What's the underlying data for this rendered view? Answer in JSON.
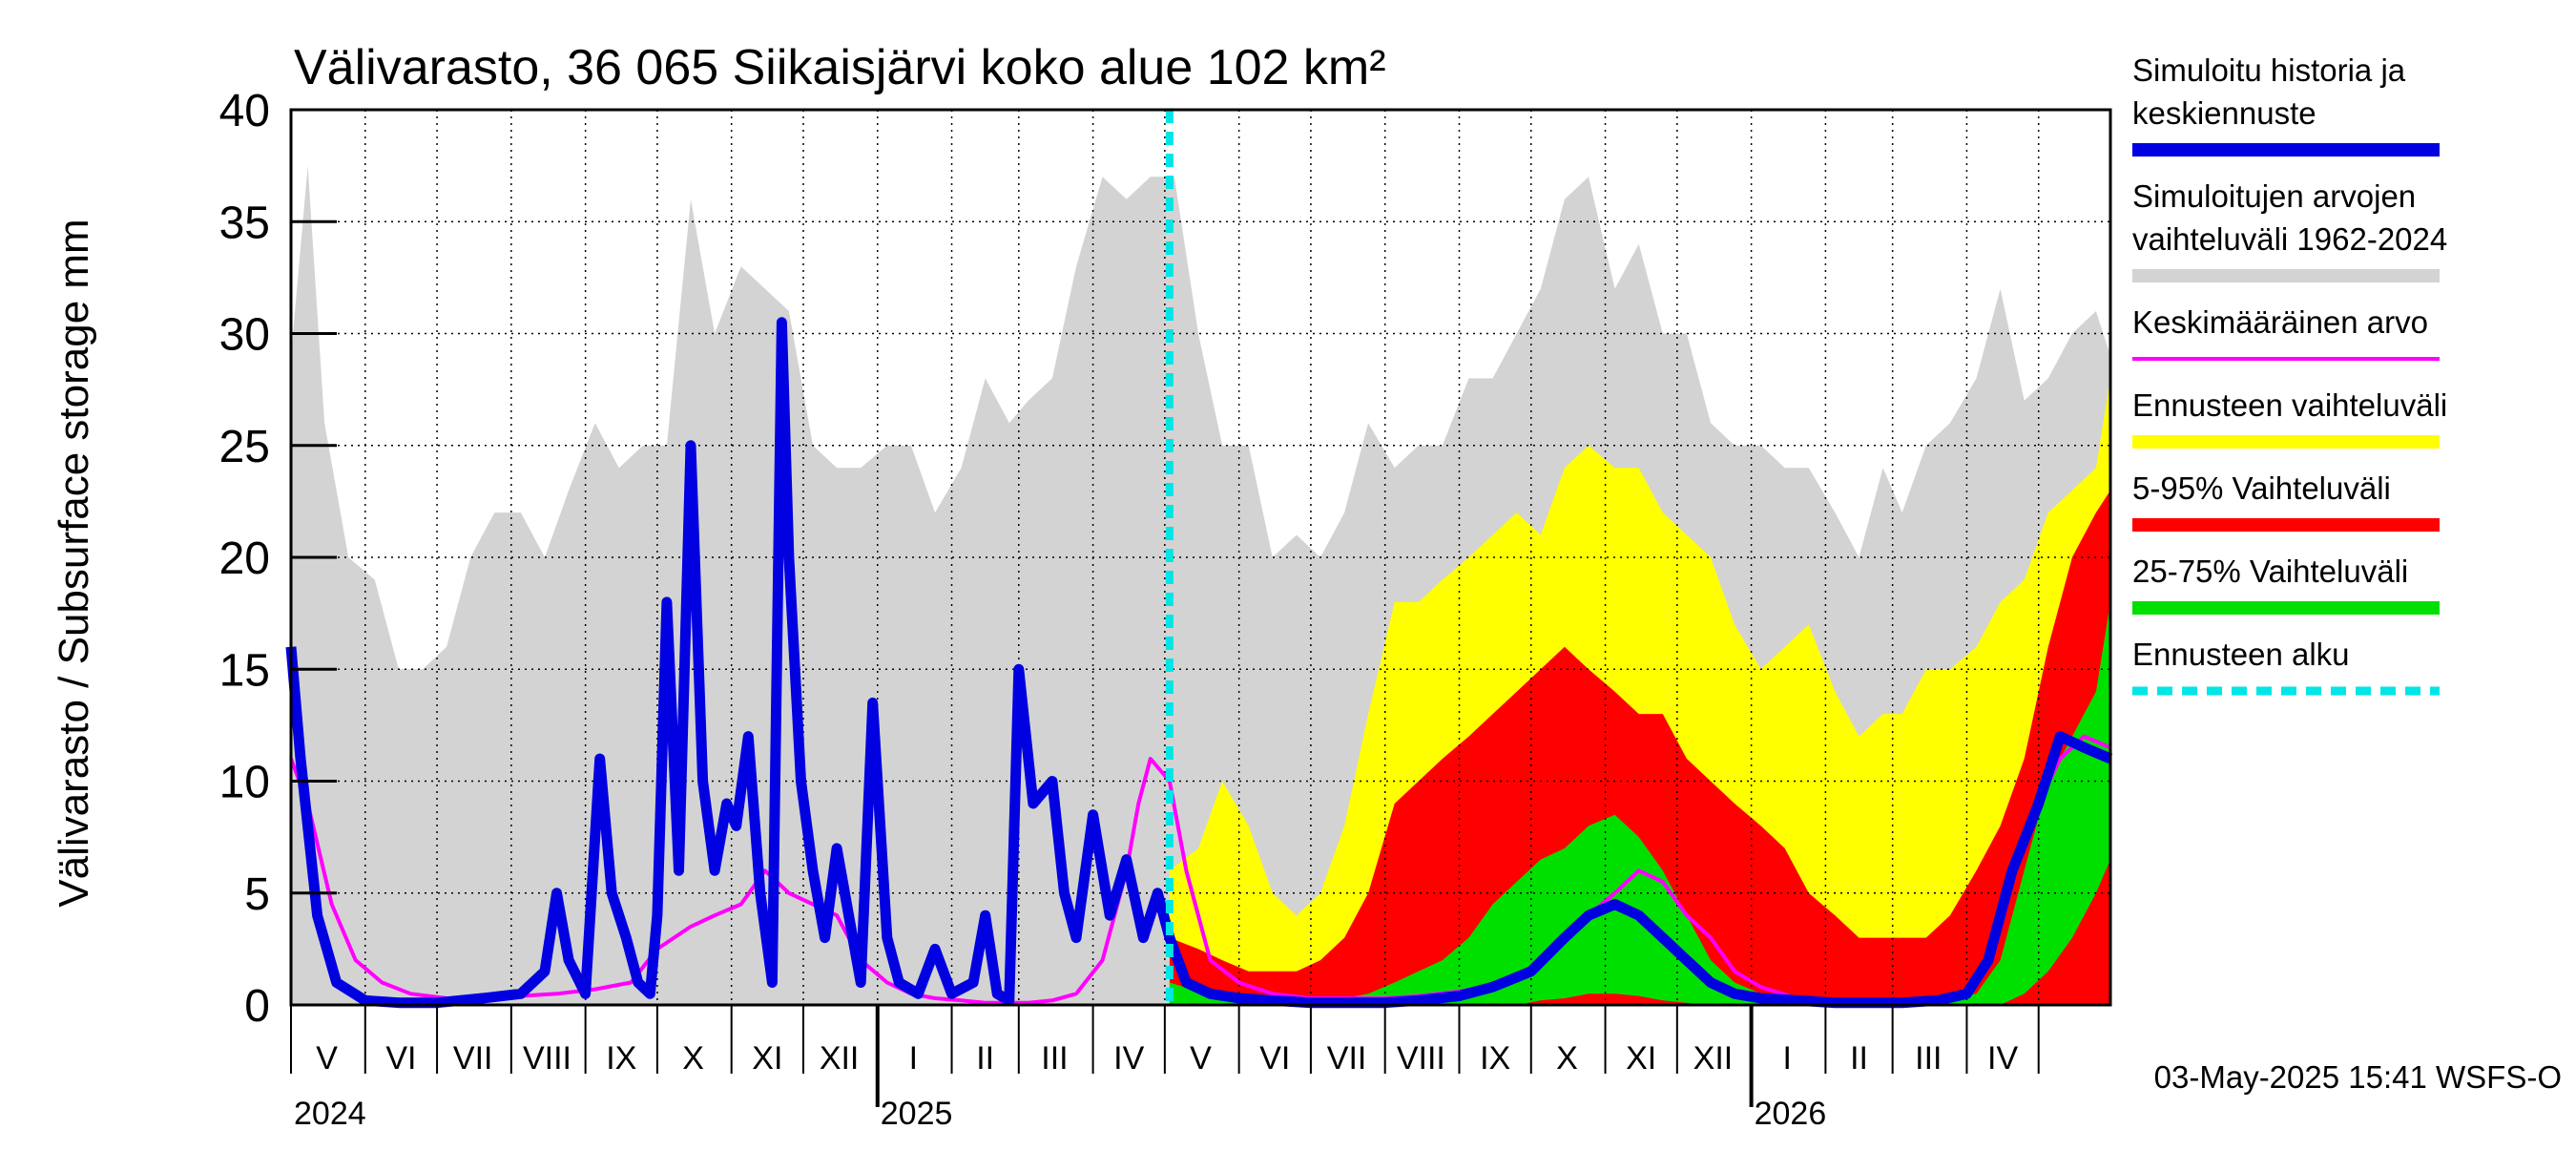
{
  "chart_data": {
    "type": "area",
    "title": "Välivarasto, 36 065 Siikaisjärvi koko alue 102 km²",
    "ylabel": "Välivarasto / Subsurface storage  mm",
    "ylim": [
      0,
      40
    ],
    "yticks": [
      0,
      5,
      10,
      15,
      20,
      25,
      30,
      35,
      40
    ],
    "grid": true,
    "legend_position": "right",
    "x_start": "2024-05-01",
    "x_end": "2026-05-31",
    "forecast_start": "2025-05-03",
    "month_labels": [
      {
        "label": "V",
        "date": "2024-05-16"
      },
      {
        "label": "VI",
        "date": "2024-06-16"
      },
      {
        "label": "VII",
        "date": "2024-07-16"
      },
      {
        "label": "VIII",
        "date": "2024-08-16"
      },
      {
        "label": "IX",
        "date": "2024-09-16"
      },
      {
        "label": "X",
        "date": "2024-10-16"
      },
      {
        "label": "XI",
        "date": "2024-11-16"
      },
      {
        "label": "XII",
        "date": "2024-12-16"
      },
      {
        "label": "I",
        "date": "2025-01-16"
      },
      {
        "label": "II",
        "date": "2025-02-15"
      },
      {
        "label": "III",
        "date": "2025-03-16"
      },
      {
        "label": "IV",
        "date": "2025-04-16"
      },
      {
        "label": "V",
        "date": "2025-05-16"
      },
      {
        "label": "VI",
        "date": "2025-06-16"
      },
      {
        "label": "VII",
        "date": "2025-07-16"
      },
      {
        "label": "VIII",
        "date": "2025-08-16"
      },
      {
        "label": "IX",
        "date": "2025-09-16"
      },
      {
        "label": "X",
        "date": "2025-10-16"
      },
      {
        "label": "XI",
        "date": "2025-11-16"
      },
      {
        "label": "XII",
        "date": "2025-12-16"
      },
      {
        "label": "I",
        "date": "2026-01-16"
      },
      {
        "label": "II",
        "date": "2026-02-15"
      },
      {
        "label": "III",
        "date": "2026-03-16"
      },
      {
        "label": "IV",
        "date": "2026-04-16"
      }
    ],
    "year_labels": [
      {
        "label": "2024",
        "date": "2024-05-01"
      },
      {
        "label": "2025",
        "date": "2025-01-01"
      },
      {
        "label": "2026",
        "date": "2026-01-01"
      }
    ],
    "legend": [
      {
        "label": "Simuloitu historia ja keskiennuste",
        "lines": [
          "Simuloitu historia ja",
          "keskiennuste"
        ],
        "color": "#0000e0",
        "style": "solid"
      },
      {
        "label": "Simuloitujen arvojen vaihteluväli 1962-2024",
        "lines": [
          "Simuloitujen arvojen",
          "vaihteluväli 1962-2024"
        ],
        "color": "#d3d3d3",
        "style": "solid"
      },
      {
        "label": "Keskimääräinen arvo",
        "lines": [
          "Keskimääräinen arvo"
        ],
        "color": "#ff00ff",
        "style": "thin"
      },
      {
        "label": "Ennusteen vaihteluväli",
        "lines": [
          "Ennusteen vaihteluväli"
        ],
        "color": "#ffff00",
        "style": "solid"
      },
      {
        "label": "5-95% Vaihteluväli",
        "lines": [
          "5-95% Vaihteluväli"
        ],
        "color": "#ff0000",
        "style": "solid"
      },
      {
        "label": "25-75% Vaihteluväli",
        "lines": [
          "25-75% Vaihteluväli"
        ],
        "color": "#00e000",
        "style": "solid"
      },
      {
        "label": "Ennusteen alku",
        "lines": [
          "Ennusteen alku"
        ],
        "color": "#00e5e5",
        "style": "dashed"
      }
    ],
    "footer": "03-May-2025 15:41 WSFS-O",
    "series": {
      "history_range_max": {
        "name": "Simuloitujen arvojen vaihteluväli 1962-2024",
        "x": [
          "2024-05-01",
          "2024-05-08",
          "2024-05-15",
          "2024-05-25",
          "2024-06-05",
          "2024-06-15",
          "2024-06-25",
          "2024-07-05",
          "2024-07-15",
          "2024-07-25",
          "2024-08-05",
          "2024-08-15",
          "2024-08-25",
          "2024-09-05",
          "2024-09-15",
          "2024-09-25",
          "2024-10-05",
          "2024-10-15",
          "2024-10-25",
          "2024-11-05",
          "2024-11-15",
          "2024-11-25",
          "2024-12-05",
          "2024-12-15",
          "2024-12-25",
          "2025-01-05",
          "2025-01-15",
          "2025-01-25",
          "2025-02-05",
          "2025-02-15",
          "2025-02-25",
          "2025-03-05",
          "2025-03-15",
          "2025-03-25",
          "2025-04-05",
          "2025-04-15",
          "2025-04-25",
          "2025-05-05",
          "2025-05-15",
          "2025-05-25",
          "2025-06-05",
          "2025-06-15",
          "2025-06-25",
          "2025-07-05",
          "2025-07-15",
          "2025-07-25",
          "2025-08-05",
          "2025-08-15",
          "2025-08-25",
          "2025-09-05",
          "2025-09-15",
          "2025-09-25",
          "2025-10-05",
          "2025-10-15",
          "2025-10-25",
          "2025-11-05",
          "2025-11-15",
          "2025-11-25",
          "2025-12-05",
          "2025-12-15",
          "2025-12-25",
          "2026-01-05",
          "2026-01-15",
          "2026-01-25",
          "2026-02-05",
          "2026-02-15",
          "2026-02-25",
          "2026-03-05",
          "2026-03-15",
          "2026-03-25",
          "2026-04-05",
          "2026-04-15",
          "2026-04-25",
          "2026-05-05",
          "2026-05-15",
          "2026-05-25",
          "2026-05-31"
        ],
        "values": [
          29,
          37.5,
          26,
          20,
          19,
          15,
          15,
          16,
          20,
          22,
          22,
          20,
          23,
          26,
          24,
          25,
          25,
          36,
          30,
          33,
          32,
          31,
          25,
          24,
          24,
          25,
          25,
          22,
          24,
          28,
          26,
          27,
          28,
          33,
          37,
          36,
          37,
          37,
          30,
          25,
          25,
          20,
          21,
          20,
          22,
          26,
          24,
          25,
          25,
          28,
          28,
          30,
          32,
          36,
          37,
          32,
          34,
          30,
          30,
          26,
          25,
          25,
          24,
          24,
          22,
          20,
          24,
          22,
          25,
          26,
          28,
          32,
          27,
          28,
          30,
          31,
          29
        ],
        "min": 0
      },
      "forecast_range": {
        "name": "Ennusteen vaihteluväli",
        "x": [
          "2025-05-03",
          "2025-05-15",
          "2025-05-25",
          "2025-06-05",
          "2025-06-15",
          "2025-06-25",
          "2025-07-05",
          "2025-07-15",
          "2025-07-25",
          "2025-08-05",
          "2025-08-15",
          "2025-08-25",
          "2025-09-05",
          "2025-09-15",
          "2025-09-25",
          "2025-10-05",
          "2025-10-15",
          "2025-10-25",
          "2025-11-05",
          "2025-11-15",
          "2025-11-25",
          "2025-12-05",
          "2025-12-15",
          "2025-12-25",
          "2026-01-05",
          "2026-01-15",
          "2026-01-25",
          "2026-02-05",
          "2026-02-15",
          "2026-02-25",
          "2026-03-05",
          "2026-03-15",
          "2026-03-25",
          "2026-04-05",
          "2026-04-15",
          "2026-04-25",
          "2026-05-05",
          "2026-05-15",
          "2026-05-25",
          "2026-05-31"
        ],
        "upper": [
          6,
          7,
          10,
          8,
          5,
          4,
          5,
          8,
          13,
          18,
          18,
          19,
          20,
          21,
          22,
          21,
          24,
          25,
          24,
          24,
          22,
          21,
          20,
          17,
          15,
          16,
          17,
          14,
          12,
          13,
          13,
          15,
          15,
          16,
          18,
          19,
          22,
          23,
          24,
          28
        ],
        "lower": [
          0,
          0,
          0,
          0,
          0,
          0,
          0,
          0,
          0,
          0,
          0,
          0,
          0,
          0,
          0,
          0,
          0,
          0,
          0,
          0,
          0,
          0,
          0,
          0,
          0,
          0,
          0,
          0,
          0,
          0,
          0,
          0,
          0,
          0,
          0,
          0,
          0,
          0,
          0,
          0
        ]
      },
      "p5_95": {
        "name": "5-95% Vaihteluväli",
        "x": [
          "2025-05-03",
          "2025-05-15",
          "2025-05-25",
          "2025-06-05",
          "2025-06-15",
          "2025-06-25",
          "2025-07-05",
          "2025-07-15",
          "2025-07-25",
          "2025-08-05",
          "2025-08-15",
          "2025-08-25",
          "2025-09-05",
          "2025-09-15",
          "2025-09-25",
          "2025-10-05",
          "2025-10-15",
          "2025-10-25",
          "2025-11-05",
          "2025-11-15",
          "2025-11-25",
          "2025-12-05",
          "2025-12-15",
          "2025-12-25",
          "2026-01-05",
          "2026-01-15",
          "2026-01-25",
          "2026-02-05",
          "2026-02-15",
          "2026-02-25",
          "2026-03-05",
          "2026-03-15",
          "2026-03-25",
          "2026-04-05",
          "2026-04-15",
          "2026-04-25",
          "2026-05-05",
          "2026-05-15",
          "2026-05-25",
          "2026-05-31"
        ],
        "upper": [
          3,
          2.5,
          2,
          1.5,
          1.5,
          1.5,
          2,
          3,
          5,
          9,
          10,
          11,
          12,
          13,
          14,
          15,
          16,
          15,
          14,
          13,
          13,
          11,
          10,
          9,
          8,
          7,
          5,
          4,
          3,
          3,
          3,
          3,
          4,
          6,
          8,
          11,
          16,
          20,
          22,
          23
        ],
        "lower": [
          0,
          0,
          0,
          0,
          0,
          0,
          0,
          0,
          0,
          0,
          0,
          0,
          0,
          0,
          0,
          0,
          0,
          0,
          0,
          0,
          0,
          0,
          0,
          0,
          0,
          0,
          0,
          0,
          0,
          0,
          0,
          0,
          0,
          0,
          0,
          0,
          0,
          0,
          0,
          0
        ]
      },
      "p25_75": {
        "name": "25-75% Vaihteluväli",
        "x": [
          "2025-05-03",
          "2025-05-15",
          "2025-05-25",
          "2025-06-05",
          "2025-06-15",
          "2025-06-25",
          "2025-07-05",
          "2025-07-15",
          "2025-07-25",
          "2025-08-05",
          "2025-08-15",
          "2025-08-25",
          "2025-09-05",
          "2025-09-15",
          "2025-09-25",
          "2025-10-05",
          "2025-10-15",
          "2025-10-25",
          "2025-11-05",
          "2025-11-15",
          "2025-11-25",
          "2025-12-05",
          "2025-12-15",
          "2025-12-25",
          "2026-01-05",
          "2026-01-15",
          "2026-01-25",
          "2026-02-05",
          "2026-02-15",
          "2026-02-25",
          "2026-03-05",
          "2026-03-15",
          "2026-03-25",
          "2026-04-05",
          "2026-04-15",
          "2026-04-25",
          "2026-05-05",
          "2026-05-15",
          "2026-05-25",
          "2026-05-31"
        ],
        "upper": [
          1,
          0.6,
          0.4,
          0.3,
          0.2,
          0.2,
          0.2,
          0.3,
          0.5,
          1,
          1.5,
          2,
          3,
          4.5,
          5.5,
          6.5,
          7,
          8,
          8.5,
          7.5,
          6,
          4,
          2,
          1,
          0.5,
          0.3,
          0.3,
          0.2,
          0.2,
          0.2,
          0.2,
          0.2,
          0.3,
          0.5,
          2,
          6,
          10,
          12,
          14,
          18
        ],
        "lower": [
          0,
          0,
          0,
          0,
          0,
          0,
          0,
          0,
          0,
          0,
          0,
          0,
          0,
          0,
          0,
          0.2,
          0.3,
          0.5,
          0.5,
          0.4,
          0.2,
          0.1,
          0,
          0,
          0,
          0,
          0,
          0,
          0,
          0,
          0,
          0,
          0,
          0,
          0,
          0.5,
          1.5,
          3,
          5,
          6.5
        ]
      },
      "mean": {
        "name": "Keskimääräinen arvo",
        "x": [
          "2024-05-01",
          "2024-05-08",
          "2024-05-18",
          "2024-05-28",
          "2024-06-08",
          "2024-06-20",
          "2024-07-05",
          "2024-07-20",
          "2024-08-05",
          "2024-08-20",
          "2024-09-05",
          "2024-09-20",
          "2024-10-01",
          "2024-10-15",
          "2024-10-25",
          "2024-11-05",
          "2024-11-15",
          "2024-11-25",
          "2024-12-05",
          "2024-12-15",
          "2024-12-25",
          "2025-01-05",
          "2025-01-15",
          "2025-01-25",
          "2025-02-05",
          "2025-02-15",
          "2025-02-25",
          "2025-03-05",
          "2025-03-15",
          "2025-03-25",
          "2025-04-05",
          "2025-04-15",
          "2025-04-20",
          "2025-04-25",
          "2025-05-03",
          "2025-05-10",
          "2025-05-20",
          "2025-06-01",
          "2025-06-15",
          "2025-07-01",
          "2025-07-15",
          "2025-08-01",
          "2025-08-15",
          "2025-09-01",
          "2025-09-15",
          "2025-10-01",
          "2025-10-15",
          "2025-10-25",
          "2025-11-05",
          "2025-11-15",
          "2025-11-25",
          "2025-12-05",
          "2025-12-15",
          "2025-12-25",
          "2026-01-05",
          "2026-01-20",
          "2026-02-05",
          "2026-02-20",
          "2026-03-05",
          "2026-03-20",
          "2026-04-01",
          "2026-04-10",
          "2026-04-20",
          "2026-05-01",
          "2026-05-10",
          "2026-05-20",
          "2026-05-31"
        ],
        "values": [
          11,
          9,
          4.5,
          2,
          1,
          0.5,
          0.3,
          0.3,
          0.4,
          0.5,
          0.7,
          1,
          2.5,
          3.5,
          4,
          4.5,
          6,
          5,
          4.5,
          4,
          2,
          1,
          0.5,
          0.3,
          0.2,
          0.1,
          0.1,
          0.1,
          0.2,
          0.5,
          2,
          6,
          9,
          11,
          10,
          6,
          2,
          1,
          0.5,
          0.3,
          0.3,
          0.3,
          0.4,
          0.6,
          0.9,
          1.5,
          3,
          4,
          5,
          6,
          5.5,
          4,
          3,
          1.5,
          0.8,
          0.3,
          0.2,
          0.1,
          0.1,
          0.2,
          0.5,
          2,
          6,
          9,
          11,
          12,
          11.5
        ]
      },
      "simulated": {
        "name": "Simuloitu historia ja keskiennuste",
        "x": [
          "2024-05-01",
          "2024-05-05",
          "2024-05-12",
          "2024-05-20",
          "2024-06-01",
          "2024-06-15",
          "2024-07-01",
          "2024-07-20",
          "2024-08-05",
          "2024-08-15",
          "2024-08-20",
          "2024-08-25",
          "2024-09-01",
          "2024-09-07",
          "2024-09-12",
          "2024-09-18",
          "2024-09-23",
          "2024-09-28",
          "2024-10-01",
          "2024-10-05",
          "2024-10-10",
          "2024-10-15",
          "2024-10-20",
          "2024-10-25",
          "2024-10-30",
          "2024-11-03",
          "2024-11-08",
          "2024-11-13",
          "2024-11-18",
          "2024-11-22",
          "2024-11-25",
          "2024-11-30",
          "2024-12-05",
          "2024-12-10",
          "2024-12-15",
          "2024-12-20",
          "2024-12-25",
          "2024-12-30",
          "2025-01-05",
          "2025-01-10",
          "2025-01-18",
          "2025-01-25",
          "2025-02-01",
          "2025-02-10",
          "2025-02-15",
          "2025-02-20",
          "2025-02-25",
          "2025-03-01",
          "2025-03-07",
          "2025-03-15",
          "2025-03-20",
          "2025-03-25",
          "2025-04-01",
          "2025-04-08",
          "2025-04-15",
          "2025-04-22",
          "2025-04-28",
          "2025-05-03",
          "2025-05-10",
          "2025-05-20",
          "2025-06-01",
          "2025-06-15",
          "2025-07-01",
          "2025-07-15",
          "2025-08-01",
          "2025-08-15",
          "2025-09-01",
          "2025-09-15",
          "2025-10-01",
          "2025-10-15",
          "2025-10-25",
          "2025-11-05",
          "2025-11-15",
          "2025-11-25",
          "2025-12-05",
          "2025-12-15",
          "2025-12-25",
          "2026-01-05",
          "2026-01-20",
          "2026-02-05",
          "2026-02-20",
          "2026-03-05",
          "2026-03-20",
          "2026-04-01",
          "2026-04-10",
          "2026-04-20",
          "2026-05-01",
          "2026-05-10",
          "2026-05-20",
          "2026-05-31"
        ],
        "values": [
          16,
          11,
          4,
          1,
          0.2,
          0.1,
          0.1,
          0.3,
          0.5,
          1.5,
          5,
          2,
          0.5,
          11,
          5,
          3,
          1,
          0.5,
          4,
          18,
          6,
          25,
          10,
          6,
          9,
          8,
          12,
          5,
          1,
          30.5,
          20,
          10,
          6,
          3,
          7,
          4,
          1,
          13.5,
          3,
          1,
          0.5,
          2.5,
          0.5,
          1,
          4,
          0.5,
          0.2,
          15,
          9,
          10,
          5,
          3,
          8.5,
          4,
          6.5,
          3,
          5,
          3,
          1,
          0.5,
          0.3,
          0.2,
          0.1,
          0.1,
          0.1,
          0.2,
          0.4,
          0.8,
          1.5,
          3,
          4,
          4.5,
          4,
          3,
          2,
          1,
          0.5,
          0.3,
          0.2,
          0.1,
          0.1,
          0.1,
          0.2,
          0.5,
          2,
          6,
          9,
          12,
          11.5,
          11
        ]
      }
    }
  }
}
